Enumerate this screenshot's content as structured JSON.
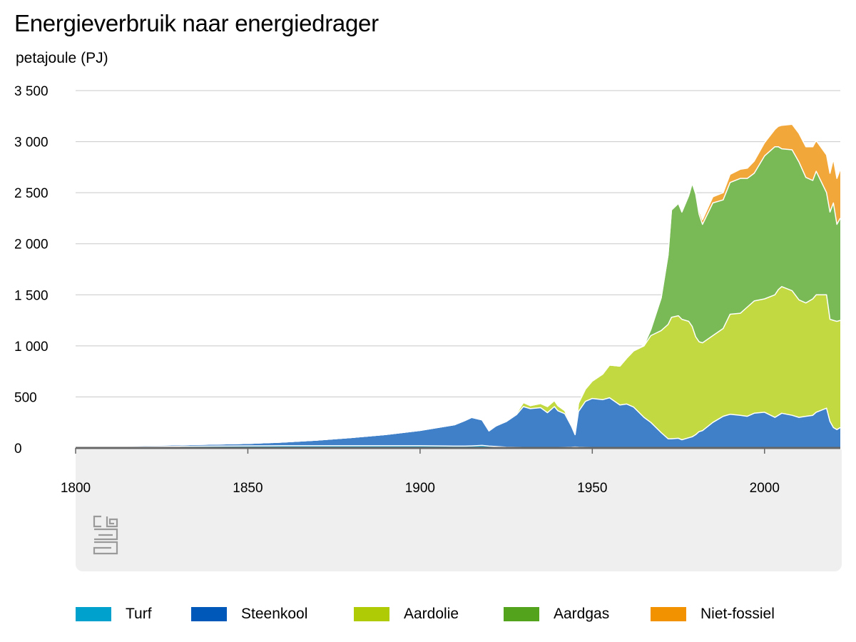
{
  "title": "Energieverbruik naar energiedrager",
  "unit_label": "petajoule (PJ)",
  "colors": {
    "turf": "#1aa0c8",
    "steenkool": "#3f80c9",
    "aardolie": "#c3d941",
    "aardgas": "#7aba56",
    "nietfossiel": "#f2a73a",
    "grid": "#c8c8c8",
    "baseline": "#666666",
    "panel": "#efefef"
  },
  "legend": [
    {
      "label": "Turf",
      "color": "#00a1cd"
    },
    {
      "label": "Steenkool",
      "color": "#0058b8"
    },
    {
      "label": "Aardolie",
      "color": "#afcb05"
    },
    {
      "label": "Aardgas",
      "color": "#53a31d"
    },
    {
      "label": "Niet-fossiel",
      "color": "#f39200"
    }
  ],
  "logo": "cbs-logo",
  "chart_data": {
    "type": "area",
    "stacked": true,
    "title": "Energieverbruik naar energiedrager",
    "ylabel": "petajoule (PJ)",
    "xlim": [
      1800,
      2022
    ],
    "ylim": [
      0,
      3500
    ],
    "x_ticks": [
      1800,
      1850,
      1900,
      1950,
      2000
    ],
    "x_tick_labels": [
      "1800",
      "1850",
      "1900",
      "1950",
      "2000"
    ],
    "y_ticks": [
      0,
      500,
      1000,
      1500,
      2000,
      2500,
      3000,
      3500
    ],
    "y_tick_labels": [
      "0",
      "500",
      "1 000",
      "1 500",
      "2 000",
      "2 500",
      "3 000",
      "3 500"
    ],
    "grid": true,
    "legend_position": "bottom",
    "x": [
      1800,
      1810,
      1820,
      1830,
      1840,
      1850,
      1860,
      1870,
      1880,
      1890,
      1900,
      1905,
      1910,
      1913,
      1915,
      1918,
      1920,
      1922,
      1925,
      1928,
      1930,
      1932,
      1935,
      1937,
      1939,
      1940,
      1942,
      1944,
      1945,
      1946,
      1948,
      1950,
      1953,
      1955,
      1958,
      1960,
      1962,
      1965,
      1967,
      1970,
      1972,
      1973,
      1975,
      1976,
      1978,
      1979,
      1980,
      1981,
      1982,
      1985,
      1988,
      1990,
      1993,
      1995,
      1997,
      2000,
      2003,
      2004,
      2005,
      2008,
      2010,
      2012,
      2014,
      2015,
      2018,
      2019,
      2020,
      2021,
      2022
    ],
    "series": [
      {
        "name": "Turf",
        "values": [
          10,
          12,
          14,
          16,
          18,
          20,
          22,
          22,
          22,
          22,
          22,
          20,
          18,
          18,
          20,
          25,
          18,
          15,
          8,
          6,
          5,
          5,
          5,
          5,
          5,
          5,
          6,
          8,
          10,
          8,
          6,
          5,
          3,
          2,
          1,
          0,
          0,
          0,
          0,
          0,
          0,
          0,
          0,
          0,
          0,
          0,
          0,
          0,
          0,
          0,
          0,
          0,
          0,
          0,
          0,
          0,
          0,
          0,
          0,
          0,
          0,
          0,
          0,
          0,
          0,
          0,
          0,
          0,
          0
        ]
      },
      {
        "name": "Steenkool",
        "values": [
          8,
          10,
          12,
          15,
          20,
          25,
          35,
          55,
          80,
          110,
          150,
          180,
          210,
          250,
          280,
          250,
          150,
          200,
          250,
          320,
          400,
          380,
          390,
          340,
          400,
          360,
          330,
          200,
          120,
          350,
          450,
          480,
          470,
          490,
          420,
          430,
          400,
          300,
          250,
          150,
          90,
          90,
          95,
          80,
          100,
          110,
          130,
          160,
          170,
          250,
          310,
          330,
          320,
          310,
          340,
          350,
          300,
          320,
          340,
          320,
          300,
          310,
          320,
          350,
          390,
          260,
          200,
          180,
          200
        ]
      },
      {
        "name": "Aardolie",
        "values": [
          0,
          0,
          0,
          0,
          0,
          0,
          0,
          0,
          0,
          0,
          0,
          0,
          0,
          0,
          0,
          0,
          0,
          0,
          5,
          15,
          40,
          30,
          40,
          60,
          60,
          50,
          30,
          15,
          25,
          80,
          120,
          170,
          250,
          320,
          380,
          450,
          550,
          700,
          850,
          1000,
          1120,
          1190,
          1200,
          1180,
          1140,
          1080,
          960,
          880,
          860,
          850,
          860,
          980,
          1000,
          1070,
          1100,
          1110,
          1200,
          1230,
          1240,
          1220,
          1150,
          1110,
          1140,
          1150,
          1110,
          1000,
          1050,
          1060,
          1050
        ]
      },
      {
        "name": "Aardgas",
        "values": [
          0,
          0,
          0,
          0,
          0,
          0,
          0,
          0,
          0,
          0,
          0,
          0,
          0,
          0,
          0,
          0,
          0,
          0,
          0,
          0,
          0,
          0,
          0,
          0,
          0,
          0,
          0,
          0,
          0,
          0,
          0,
          0,
          0,
          0,
          0,
          0,
          2,
          5,
          60,
          320,
          680,
          1050,
          1100,
          1050,
          1230,
          1400,
          1400,
          1250,
          1160,
          1300,
          1260,
          1290,
          1320,
          1260,
          1250,
          1400,
          1450,
          1400,
          1350,
          1380,
          1350,
          1230,
          1160,
          1210,
          1000,
          1050,
          1150,
          950,
          1000
        ]
      },
      {
        "name": "Niet-fossiel",
        "values": [
          0,
          0,
          0,
          0,
          0,
          0,
          0,
          0,
          0,
          0,
          0,
          0,
          0,
          0,
          0,
          0,
          0,
          0,
          0,
          0,
          0,
          0,
          0,
          0,
          0,
          0,
          0,
          0,
          0,
          0,
          0,
          0,
          0,
          0,
          0,
          0,
          0,
          0,
          0,
          0,
          5,
          8,
          10,
          15,
          20,
          25,
          30,
          40,
          45,
          60,
          70,
          80,
          90,
          100,
          120,
          130,
          170,
          200,
          230,
          250,
          280,
          300,
          330,
          300,
          370,
          380,
          430,
          450,
          480
        ]
      }
    ]
  }
}
